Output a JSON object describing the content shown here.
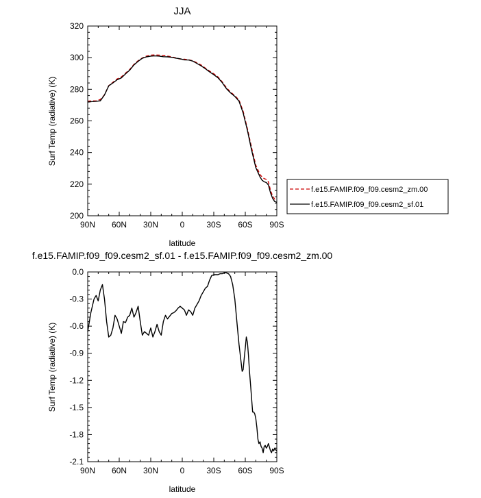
{
  "chart_data": [
    {
      "type": "line",
      "title": "JJA",
      "xlabel": "latitude",
      "ylabel": "Surf Temp (radiative) (K)",
      "xlim": [
        90,
        -90
      ],
      "ylim": [
        200,
        320
      ],
      "x_ticks": [
        "90N",
        "60N",
        "30N",
        "0",
        "30S",
        "60S",
        "90S"
      ],
      "y_ticks": [
        "200",
        "220",
        "240",
        "260",
        "280",
        "300",
        "320"
      ],
      "legend_position": "right",
      "series": [
        {
          "name": "f.e15.FAMIP.f09_f09.cesm2_zm.00",
          "color": "#cc0000",
          "dash": "dashed",
          "x": [
            90,
            86,
            82,
            78,
            74,
            70,
            66,
            62,
            58,
            54,
            50,
            46,
            42,
            38,
            34,
            30,
            26,
            22,
            18,
            14,
            10,
            6,
            2,
            -2,
            -6,
            -10,
            -14,
            -18,
            -22,
            -26,
            -30,
            -34,
            -38,
            -42,
            -46,
            -50,
            -54,
            -58,
            -62,
            -66,
            -70,
            -74,
            -76,
            -78,
            -80,
            -82,
            -84,
            -86,
            -88,
            -90
          ],
          "y": [
            272.5,
            272.6,
            272.7,
            273.5,
            276.5,
            282.3,
            284.4,
            286.5,
            287.8,
            290.2,
            292.5,
            295.8,
            298.1,
            299.8,
            301.0,
            301.6,
            301.7,
            301.6,
            301.4,
            301.0,
            300.5,
            299.8,
            299.1,
            299.0,
            298.7,
            298.0,
            296.8,
            295.3,
            293.4,
            291.5,
            289.8,
            287.8,
            284.7,
            281.0,
            278.2,
            276.0,
            273.2,
            266.0,
            255.0,
            243.0,
            232.0,
            226.0,
            224.5,
            223.5,
            223.0,
            221.5,
            216.0,
            212.5,
            210.5,
            209.8
          ]
        },
        {
          "name": "f.e15.FAMIP.f09_f09.cesm2_sf.01",
          "color": "#000000",
          "dash": "solid",
          "x": [
            90,
            86,
            82,
            78,
            74,
            70,
            66,
            62,
            58,
            54,
            50,
            46,
            42,
            38,
            34,
            30,
            26,
            22,
            18,
            14,
            10,
            6,
            2,
            -2,
            -6,
            -10,
            -14,
            -18,
            -22,
            -26,
            -30,
            -34,
            -38,
            -42,
            -46,
            -50,
            -54,
            -58,
            -62,
            -66,
            -70,
            -74,
            -76,
            -78,
            -80,
            -82,
            -84,
            -86,
            -88,
            -90
          ],
          "y": [
            271.9,
            272.2,
            272.4,
            272.7,
            276.4,
            282.2,
            284.0,
            286.0,
            287.2,
            289.7,
            292.1,
            295.4,
            297.7,
            299.6,
            300.5,
            301.0,
            301.1,
            301.0,
            300.6,
            300.5,
            300.2,
            299.7,
            299.3,
            298.6,
            298.5,
            297.8,
            296.3,
            294.8,
            293.0,
            291.0,
            289.2,
            287.3,
            284.2,
            280.4,
            277.7,
            275.5,
            272.5,
            265.0,
            254.0,
            241.5,
            230.5,
            224.5,
            222.5,
            221.5,
            221.0,
            219.5,
            214.5,
            211.0,
            209.0,
            208.5
          ]
        }
      ]
    },
    {
      "type": "line",
      "title": "f.e15.FAMIP.f09_f09.cesm2_sf.01 - f.e15.FAMIP.f09_f09.cesm2_zm.00",
      "xlabel": "latitude",
      "ylabel": "Surf Temp (radiative) (K)",
      "xlim": [
        90,
        -90
      ],
      "ylim": [
        -2.1,
        0.0
      ],
      "x_ticks": [
        "90N",
        "60N",
        "30N",
        "0",
        "30S",
        "60S",
        "90S"
      ],
      "y_ticks": [
        "-2.1",
        "-1.8",
        "-1.5",
        "-1.2",
        "-0.9",
        "-0.6",
        "-0.3",
        "0.0"
      ],
      "series": [
        {
          "color": "#000000",
          "dash": "solid",
          "x": [
            90,
            87,
            84,
            82,
            80,
            78,
            76,
            74,
            72,
            70,
            68,
            66,
            64,
            62,
            60,
            58,
            56,
            54,
            52,
            50,
            48,
            46,
            44,
            42,
            40,
            38,
            36,
            34,
            32,
            30,
            28,
            26,
            24,
            22,
            20,
            18,
            16,
            14,
            12,
            10,
            8,
            6,
            4,
            2,
            0,
            -2,
            -4,
            -6,
            -8,
            -10,
            -12,
            -14,
            -16,
            -18,
            -20,
            -22,
            -24,
            -26,
            -28,
            -30,
            -32,
            -34,
            -36,
            -38,
            -40,
            -42,
            -44,
            -46,
            -48,
            -50,
            -52,
            -54,
            -56,
            -57,
            -58,
            -59,
            -60,
            -61,
            -62,
            -63,
            -64,
            -65,
            -66,
            -67,
            -68,
            -69,
            -70,
            -71,
            -72,
            -73,
            -74,
            -75,
            -76,
            -77,
            -78,
            -79,
            -80,
            -81,
            -82,
            -83,
            -84,
            -85,
            -86,
            -87,
            -88,
            -89,
            -90
          ],
          "y": [
            -0.66,
            -0.45,
            -0.3,
            -0.26,
            -0.32,
            -0.2,
            -0.14,
            -0.3,
            -0.55,
            -0.72,
            -0.7,
            -0.62,
            -0.48,
            -0.52,
            -0.6,
            -0.68,
            -0.55,
            -0.56,
            -0.5,
            -0.48,
            -0.4,
            -0.5,
            -0.45,
            -0.38,
            -0.55,
            -0.7,
            -0.66,
            -0.68,
            -0.7,
            -0.62,
            -0.72,
            -0.66,
            -0.58,
            -0.66,
            -0.7,
            -0.55,
            -0.48,
            -0.52,
            -0.49,
            -0.46,
            -0.45,
            -0.43,
            -0.4,
            -0.38,
            -0.4,
            -0.42,
            -0.48,
            -0.42,
            -0.44,
            -0.48,
            -0.4,
            -0.36,
            -0.32,
            -0.26,
            -0.22,
            -0.18,
            -0.16,
            -0.09,
            -0.04,
            -0.03,
            -0.03,
            -0.03,
            -0.02,
            -0.02,
            -0.01,
            -0.01,
            -0.02,
            -0.05,
            -0.14,
            -0.3,
            -0.55,
            -0.8,
            -1.0,
            -1.1,
            -1.08,
            -0.95,
            -0.84,
            -0.72,
            -0.78,
            -0.92,
            -1.1,
            -1.25,
            -1.4,
            -1.55,
            -1.55,
            -1.57,
            -1.62,
            -1.72,
            -1.85,
            -1.9,
            -1.88,
            -1.93,
            -1.95,
            -2.0,
            -1.93,
            -1.92,
            -1.95,
            -1.93,
            -1.9,
            -1.94,
            -1.98,
            -2.0,
            -1.96,
            -1.98,
            -1.95,
            -1.97,
            -1.98
          ]
        }
      ]
    }
  ]
}
